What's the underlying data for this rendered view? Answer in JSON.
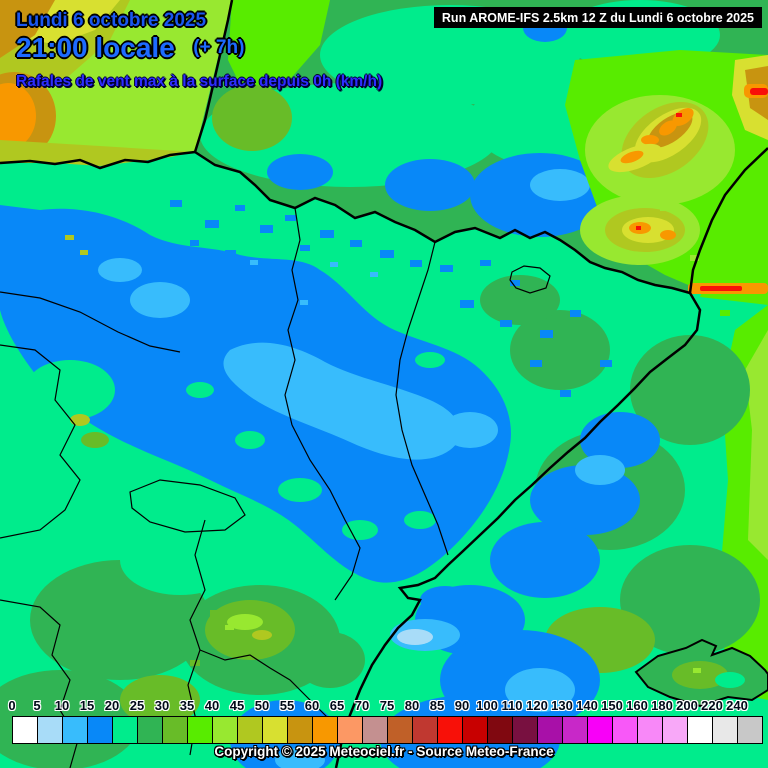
{
  "header": {
    "date_line": "Lundi 6 octobre 2025",
    "time_line": "21:00 locale",
    "offset": "(+ 7h)",
    "subtitle": "Rafales de vent max à la surface depuis 0h (km/h)",
    "run_info": "Run AROME-IFS 2.5km 12 Z du Lundi 6 octobre 2025",
    "date_color": "#1a57f0",
    "time_color": "#1d6bff",
    "subtitle_color": "#2d2dff"
  },
  "footer": {
    "copyright": "Copyright © 2025 Meteociel.fr - Source Meteo-France"
  },
  "scale": {
    "unit": "km/h",
    "steps": [
      {
        "value": "0",
        "color": "#FFFFFF"
      },
      {
        "value": "5",
        "color": "#A8DCF8"
      },
      {
        "value": "10",
        "color": "#38BCFC"
      },
      {
        "value": "15",
        "color": "#0888F8"
      },
      {
        "value": "20",
        "color": "#00EC8C"
      },
      {
        "value": "25",
        "color": "#30B454"
      },
      {
        "value": "30",
        "color": "#68BC28"
      },
      {
        "value": "35",
        "color": "#58EC00"
      },
      {
        "value": "40",
        "color": "#98E830"
      },
      {
        "value": "45",
        "color": "#B0C820"
      },
      {
        "value": "50",
        "color": "#D8E030"
      },
      {
        "value": "55",
        "color": "#C89410"
      },
      {
        "value": "60",
        "color": "#F89800"
      },
      {
        "value": "65",
        "color": "#FC9864"
      },
      {
        "value": "70",
        "color": "#C49090"
      },
      {
        "value": "75",
        "color": "#C06028"
      },
      {
        "value": "80",
        "color": "#C03830"
      },
      {
        "value": "85",
        "color": "#F81008"
      },
      {
        "value": "90",
        "color": "#C80000"
      },
      {
        "value": "100",
        "color": "#800810"
      },
      {
        "value": "110",
        "color": "#781040"
      },
      {
        "value": "120",
        "color": "#A810A8"
      },
      {
        "value": "130",
        "color": "#C828C8"
      },
      {
        "value": "140",
        "color": "#F800F8"
      },
      {
        "value": "150",
        "color": "#F858F8"
      },
      {
        "value": "160",
        "color": "#F888F8"
      },
      {
        "value": "180",
        "color": "#F8A8F8"
      },
      {
        "value": "200",
        "color": "#FFFFFF"
      },
      {
        "value": "220",
        "color": "#E8E8E8"
      },
      {
        "value": "240",
        "color": "#C8C8C8"
      }
    ]
  },
  "map": {
    "border_color": "#000000",
    "description": "AROME-IFS surface wind gust field over NE Spain / S France"
  }
}
